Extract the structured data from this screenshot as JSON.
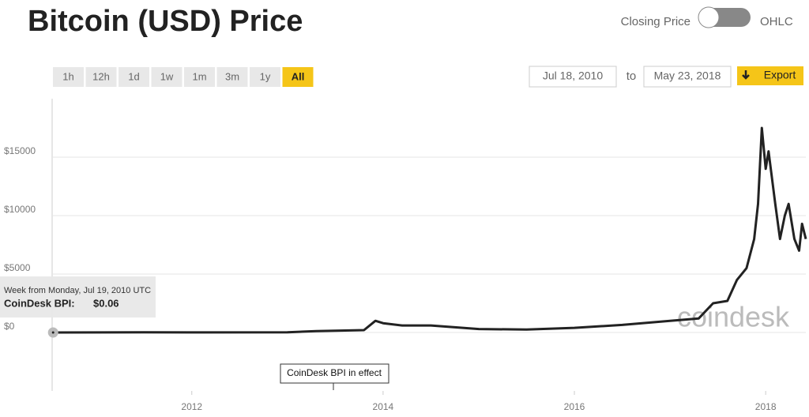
{
  "header": {
    "title": "Bitcoin (USD) Price",
    "toggle_left": "Closing Price",
    "toggle_right": "OHLC"
  },
  "controls": {
    "ranges": [
      "1h",
      "12h",
      "1d",
      "1w",
      "1m",
      "3m",
      "1y",
      "All"
    ],
    "active": 7,
    "from": "Jul 18, 2010",
    "to_label": "to",
    "to": "May 23, 2018",
    "export": "Export"
  },
  "tooltip": {
    "date": "Week from Monday, Jul 19, 2010 UTC",
    "label": "CoinDesk BPI:",
    "value": "$0.06"
  },
  "watermark": "coindesk",
  "chart_data": {
    "type": "line",
    "annotation": "CoinDesk BPI in effect",
    "x": [
      2010.55,
      2011.5,
      2012,
      2013,
      2013.3,
      2013.8,
      2013.92,
      2014.0,
      2014.2,
      2014.5,
      2015.0,
      2015.5,
      2016.0,
      2016.5,
      2017.0,
      2017.3,
      2017.45,
      2017.6,
      2017.7,
      2017.8,
      2017.88,
      2017.92,
      2017.96,
      2018.0,
      2018.03,
      2018.1,
      2018.15,
      2018.2,
      2018.24,
      2018.3,
      2018.35,
      2018.38,
      2018.42
    ],
    "series": [
      {
        "name": "CoinDesk BPI",
        "color": "#222222",
        "values": [
          0.06,
          15,
          5,
          13,
          120,
          200,
          1000,
          800,
          600,
          600,
          300,
          250,
          400,
          650,
          1000,
          1200,
          2500,
          2700,
          4500,
          5500,
          8000,
          11000,
          17500,
          14000,
          15500,
          11000,
          8000,
          10000,
          11000,
          8000,
          7000,
          9300,
          8000
        ]
      }
    ],
    "xlim": [
      2010.54,
      2018.42
    ],
    "xticks": [
      2012,
      2014,
      2016,
      2018
    ],
    "ylim": [
      -5000,
      20000
    ],
    "yticks": [
      {
        "value": 0,
        "label": "$0"
      },
      {
        "value": 5000,
        "label": "$5000"
      },
      {
        "value": 10000,
        "label": "$10000"
      },
      {
        "value": 15000,
        "label": "$15000"
      }
    ],
    "grid": true
  }
}
